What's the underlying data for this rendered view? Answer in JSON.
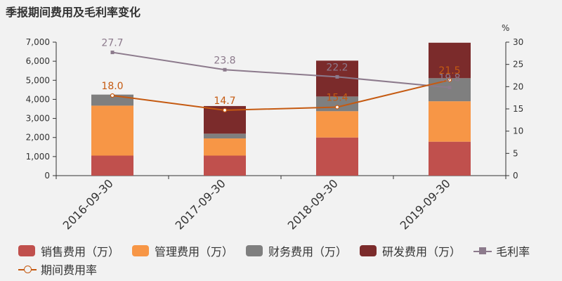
{
  "title": "季报期间费用及毛利率变化",
  "y2_unit": "%",
  "legend": [
    {
      "label": "销售费用（万）",
      "color": "#c0504d",
      "kind": "bar"
    },
    {
      "label": "管理费用（万）",
      "color": "#f79646",
      "kind": "bar"
    },
    {
      "label": "财务费用（万）",
      "color": "#7f7f7f",
      "kind": "bar"
    },
    {
      "label": "研发费用（万）",
      "color": "#7b2b2b",
      "kind": "bar"
    },
    {
      "label": "毛利率",
      "color": "#8c7a8c",
      "kind": "line-square"
    },
    {
      "label": "期间费用率",
      "color": "#c55a11",
      "kind": "line-circle"
    }
  ],
  "chart_data": {
    "type": "bar",
    "title": "季报期间费用及毛利率变化",
    "categories": [
      "2016-09-30",
      "2017-09-30",
      "2018-09-30",
      "2019-09-30"
    ],
    "stacked": true,
    "series": [
      {
        "name": "销售费用（万）",
        "values": [
          1050,
          1050,
          2000,
          1780
        ],
        "color": "#c0504d"
      },
      {
        "name": "管理费用（万）",
        "values": [
          2620,
          900,
          1380,
          2120
        ],
        "color": "#f79646"
      },
      {
        "name": "财务费用（万）",
        "values": [
          580,
          250,
          770,
          1210
        ],
        "color": "#7f7f7f"
      },
      {
        "name": "研发费用（万）",
        "values": [
          0,
          1450,
          1880,
          1860
        ],
        "color": "#7b2b2b"
      }
    ],
    "lines": [
      {
        "name": "毛利率",
        "values": [
          27.7,
          23.8,
          22.2,
          19.8
        ],
        "labels": [
          "27.7",
          "23.8",
          "22.2",
          "19.8"
        ],
        "color": "#8c7a8c",
        "axis": "right",
        "marker": "square"
      },
      {
        "name": "期间费用率",
        "values": [
          18.0,
          14.7,
          15.4,
          21.5
        ],
        "labels": [
          "18.0",
          "14.7",
          "15.4",
          "21.5"
        ],
        "color": "#c55a11",
        "axis": "right",
        "marker": "circle"
      }
    ],
    "y_left": {
      "min": 0,
      "max": 7000,
      "ticks": [
        0,
        1000,
        2000,
        3000,
        4000,
        5000,
        6000,
        7000
      ],
      "tick_labels": [
        "0",
        "1,000",
        "2,000",
        "3,000",
        "4,000",
        "5,000",
        "6,000",
        "7,000"
      ]
    },
    "y_right": {
      "min": 0,
      "max": 30,
      "ticks": [
        0,
        5,
        10,
        15,
        20,
        25,
        30
      ],
      "tick_labels": [
        "0",
        "5",
        "10",
        "15",
        "20",
        "25",
        "30"
      ],
      "unit": "%"
    },
    "grid": false,
    "legend_position": "bottom"
  }
}
